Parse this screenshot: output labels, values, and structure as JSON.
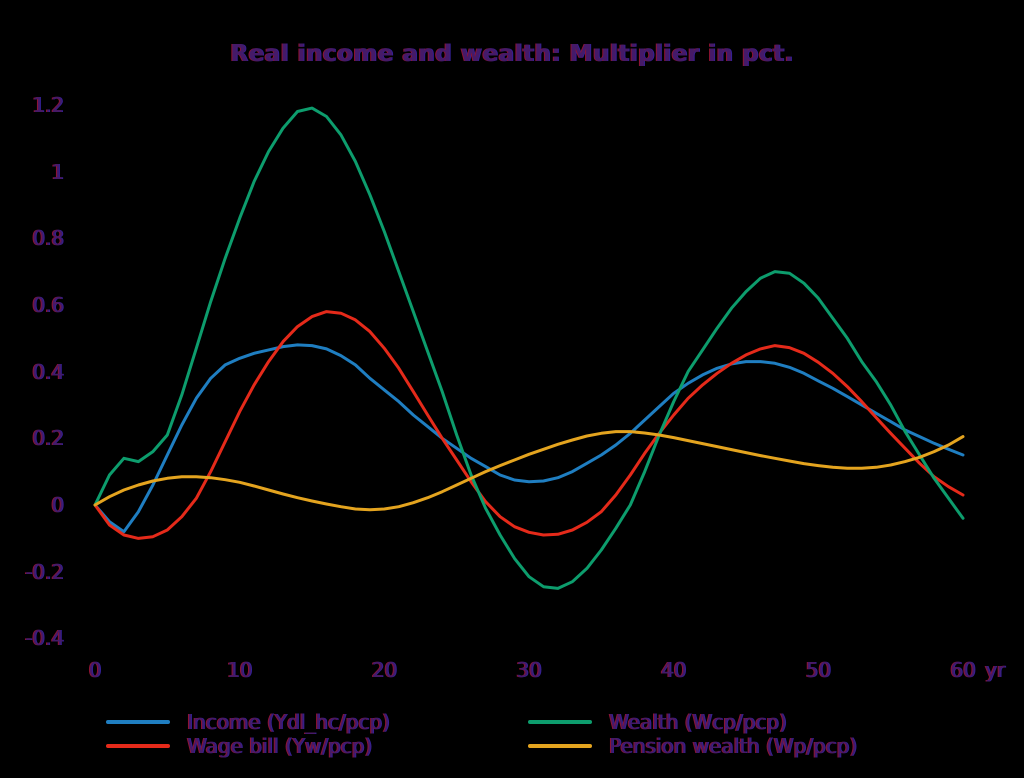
{
  "colors": {
    "background": "#000000",
    "text": "#451a68",
    "income": "#1f7ec1",
    "wage_bill": "#e52a1a",
    "wealth": "#0d9d6d",
    "pension_wealth": "#e4a41f"
  },
  "chart_data": {
    "type": "line",
    "title": "Real income and wealth: Multiplier in pct.",
    "xlabel": "",
    "ylabel": "",
    "xlim": [
      0,
      60
    ],
    "ylim": [
      -0.4,
      1.2
    ],
    "grid": false,
    "legend_position": "bottom",
    "x_axis": {
      "unit": "yr",
      "ticks": [
        {
          "value": 0,
          "label": "0"
        },
        {
          "value": 10,
          "label": "10"
        },
        {
          "value": 20,
          "label": "20"
        },
        {
          "value": 30,
          "label": "30"
        },
        {
          "value": 40,
          "label": "40"
        },
        {
          "value": 50,
          "label": "50"
        },
        {
          "value": 60,
          "label": "60"
        }
      ]
    },
    "y_axis": {
      "ticks": [
        {
          "value": 1.2,
          "label": "1.2"
        },
        {
          "value": 1,
          "label": "1"
        },
        {
          "value": 0.8,
          "label": "0.8"
        },
        {
          "value": 0.6,
          "label": "0.6"
        },
        {
          "value": 0.4,
          "label": "0.4"
        },
        {
          "value": 0.2,
          "label": "0.2"
        },
        {
          "value": 0,
          "label": "0"
        },
        {
          "value": -0.2,
          "label": "-0.2"
        },
        {
          "value": -0.4,
          "label": "-0.4"
        }
      ]
    },
    "x": [
      0,
      1,
      2,
      3,
      4,
      5,
      6,
      7,
      8,
      9,
      10,
      11,
      12,
      13,
      14,
      15,
      16,
      17,
      18,
      19,
      20,
      21,
      22,
      23,
      24,
      25,
      26,
      27,
      28,
      29,
      30,
      31,
      32,
      33,
      34,
      35,
      36,
      37,
      38,
      39,
      40,
      41,
      42,
      43,
      44,
      45,
      46,
      47,
      48,
      49,
      50,
      51,
      52,
      53,
      54,
      55,
      56,
      57,
      58,
      59,
      60
    ],
    "series": [
      {
        "name": "Income (Ydl_hc/pcp)",
        "color": "#1f7ec1",
        "values": [
          0,
          -0.05,
          -0.08,
          -0.02,
          0.06,
          0.15,
          0.24,
          0.32,
          0.38,
          0.42,
          0.44,
          0.455,
          0.465,
          0.475,
          0.48,
          0.478,
          0.468,
          0.448,
          0.42,
          0.38,
          0.345,
          0.31,
          0.27,
          0.235,
          0.2,
          0.17,
          0.14,
          0.115,
          0.09,
          0.075,
          0.07,
          0.072,
          0.082,
          0.1,
          0.125,
          0.15,
          0.18,
          0.215,
          0.255,
          0.295,
          0.335,
          0.365,
          0.39,
          0.41,
          0.423,
          0.43,
          0.43,
          0.425,
          0.413,
          0.395,
          0.372,
          0.35,
          0.325,
          0.3,
          0.275,
          0.25,
          0.225,
          0.205,
          0.185,
          0.167,
          0.15
        ]
      },
      {
        "name": "Wage bill (Yw/pcp)",
        "color": "#e52a1a",
        "values": [
          0,
          -0.06,
          -0.09,
          -0.1,
          -0.095,
          -0.075,
          -0.035,
          0.02,
          0.1,
          0.19,
          0.28,
          0.36,
          0.43,
          0.49,
          0.535,
          0.565,
          0.58,
          0.575,
          0.555,
          0.52,
          0.47,
          0.41,
          0.34,
          0.27,
          0.2,
          0.135,
          0.07,
          0.01,
          -0.035,
          -0.065,
          -0.082,
          -0.09,
          -0.088,
          -0.075,
          -0.052,
          -0.02,
          0.03,
          0.09,
          0.155,
          0.215,
          0.27,
          0.32,
          0.36,
          0.395,
          0.425,
          0.45,
          0.468,
          0.478,
          0.472,
          0.455,
          0.428,
          0.395,
          0.355,
          0.31,
          0.262,
          0.215,
          0.17,
          0.125,
          0.085,
          0.055,
          0.03
        ]
      },
      {
        "name": "Wealth (Wcp/pcp)",
        "color": "#0d9d6d",
        "values": [
          0,
          0.09,
          0.14,
          0.13,
          0.16,
          0.21,
          0.33,
          0.47,
          0.61,
          0.74,
          0.86,
          0.97,
          1.06,
          1.13,
          1.18,
          1.19,
          1.165,
          1.11,
          1.03,
          0.93,
          0.82,
          0.7,
          0.58,
          0.46,
          0.34,
          0.21,
          0.09,
          -0.01,
          -0.09,
          -0.16,
          -0.215,
          -0.245,
          -0.25,
          -0.23,
          -0.19,
          -0.135,
          -0.07,
          0,
          0.1,
          0.21,
          0.31,
          0.4,
          0.465,
          0.53,
          0.59,
          0.64,
          0.68,
          0.7,
          0.695,
          0.665,
          0.62,
          0.56,
          0.5,
          0.43,
          0.37,
          0.3,
          0.22,
          0.15,
          0.08,
          0.02,
          -0.04
        ]
      },
      {
        "name": "Pension wealth (Wp/pcp)",
        "color": "#e4a41f",
        "values": [
          0,
          0.025,
          0.045,
          0.06,
          0.072,
          0.08,
          0.085,
          0.085,
          0.082,
          0.076,
          0.068,
          0.057,
          0.045,
          0.033,
          0.022,
          0.012,
          0.003,
          -0.005,
          -0.012,
          -0.014,
          -0.012,
          -0.005,
          0.007,
          0.022,
          0.04,
          0.06,
          0.08,
          0.1,
          0.118,
          0.135,
          0.152,
          0.167,
          0.182,
          0.195,
          0.207,
          0.215,
          0.22,
          0.22,
          0.216,
          0.21,
          0.202,
          0.193,
          0.184,
          0.175,
          0.166,
          0.157,
          0.148,
          0.14,
          0.132,
          0.124,
          0.118,
          0.113,
          0.11,
          0.11,
          0.113,
          0.12,
          0.13,
          0.143,
          0.16,
          0.18,
          0.205
        ]
      }
    ]
  }
}
